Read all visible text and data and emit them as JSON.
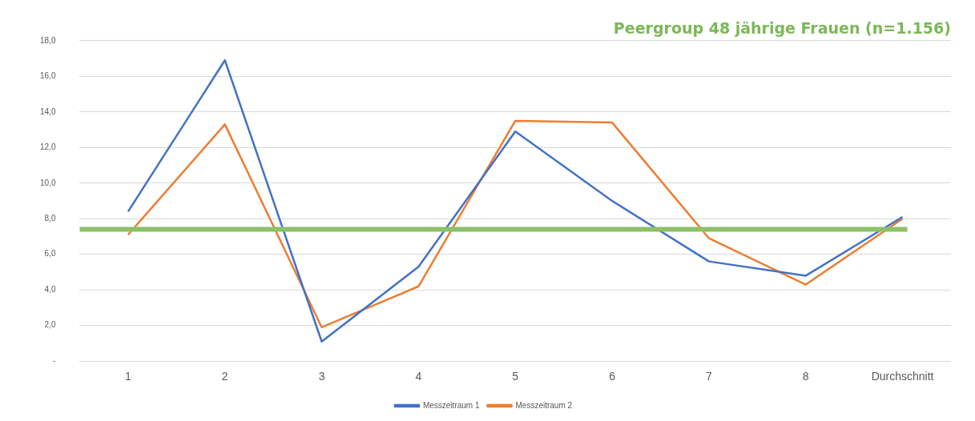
{
  "chart_data": {
    "type": "line",
    "title": "Peergroup 48 jährige Frauen (n=1.156)",
    "categories": [
      "1",
      "2",
      "3",
      "4",
      "5",
      "6",
      "7",
      "8",
      "Durchschnitt"
    ],
    "series": [
      {
        "name": "Messzeitraum 1",
        "color": "#4472c4",
        "values": [
          8.4,
          16.9,
          1.1,
          5.3,
          12.9,
          9.0,
          5.6,
          4.8,
          8.1
        ]
      },
      {
        "name": "Messzeitraum 2",
        "color": "#ed7d31",
        "values": [
          7.1,
          13.3,
          1.9,
          4.2,
          13.5,
          13.4,
          6.9,
          4.3,
          8.0
        ]
      }
    ],
    "ylim": [
      0,
      18
    ],
    "yticks": [
      {
        "value": 0,
        "label": "-"
      },
      {
        "value": 2,
        "label": "2,0"
      },
      {
        "value": 4,
        "label": "4,0"
      },
      {
        "value": 6,
        "label": "6,0"
      },
      {
        "value": 8,
        "label": "8,0"
      },
      {
        "value": 10,
        "label": "10,0"
      },
      {
        "value": 12,
        "label": "12,0"
      },
      {
        "value": 14,
        "label": "14,0"
      },
      {
        "value": 16,
        "label": "16,0"
      },
      {
        "value": 18,
        "label": "18,0"
      }
    ],
    "ref_lines": [
      {
        "axis": "y",
        "value": 7.4,
        "color": "#8cc168"
      }
    ],
    "grid": "y",
    "legend": "bottom",
    "marker": "none",
    "line_style": "solid"
  }
}
